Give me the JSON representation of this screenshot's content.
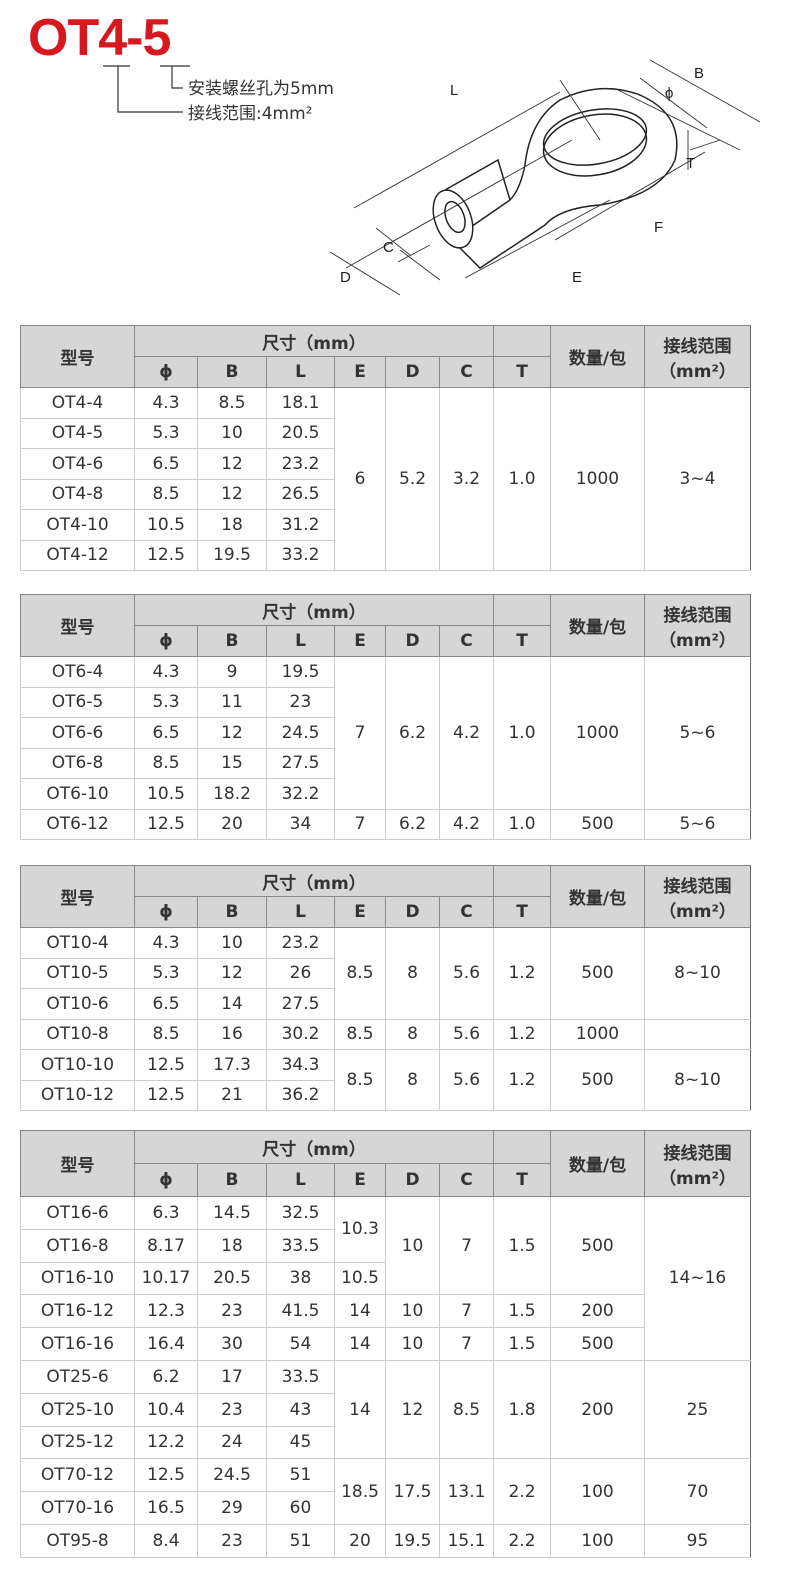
{
  "header": {
    "model_code": "OT4-5",
    "screw_hole_note": "安装螺丝孔为5mm",
    "wire_range_note": "接线范围:4mm²",
    "title_color": "#d7191f"
  },
  "diagram_labels": {
    "L": "L",
    "B": "B",
    "phi": "ϕ",
    "T": "T",
    "F": "F",
    "E": "E",
    "D": "D",
    "C": "C"
  },
  "table_header": {
    "model": "型号",
    "size": "尺寸（mm）",
    "cols": [
      "ϕ",
      "B",
      "L",
      "E",
      "D",
      "C",
      "T"
    ],
    "qty": "数量/包",
    "range_line1": "接线范围",
    "range_line2": "（mm²）"
  },
  "tables": [
    {
      "rows": [
        {
          "c": [
            [
              "OT4-4"
            ],
            [
              "4.3"
            ],
            [
              "8.5"
            ],
            [
              "18.1"
            ],
            [
              "6",
              6
            ],
            [
              "5.2",
              6
            ],
            [
              "3.2",
              6
            ],
            [
              "1.0",
              6
            ],
            [
              "1000",
              6
            ],
            [
              "3~4",
              6
            ]
          ]
        },
        {
          "c": [
            [
              "OT4-5"
            ],
            [
              "5.3"
            ],
            [
              "10"
            ],
            [
              "20.5"
            ]
          ]
        },
        {
          "c": [
            [
              "OT4-6"
            ],
            [
              "6.5"
            ],
            [
              "12"
            ],
            [
              "23.2"
            ]
          ]
        },
        {
          "c": [
            [
              "OT4-8"
            ],
            [
              "8.5"
            ],
            [
              "12"
            ],
            [
              "26.5"
            ]
          ]
        },
        {
          "c": [
            [
              "OT4-10"
            ],
            [
              "10.5"
            ],
            [
              "18"
            ],
            [
              "31.2"
            ]
          ]
        },
        {
          "c": [
            [
              "OT4-12"
            ],
            [
              "12.5"
            ],
            [
              "19.5"
            ],
            [
              "33.2"
            ]
          ]
        }
      ]
    },
    {
      "rows": [
        {
          "c": [
            [
              "OT6-4"
            ],
            [
              "4.3"
            ],
            [
              "9"
            ],
            [
              "19.5"
            ],
            [
              "7",
              5
            ],
            [
              "6.2",
              5
            ],
            [
              "4.2",
              5
            ],
            [
              "1.0",
              5
            ],
            [
              "1000",
              5
            ],
            [
              "5~6",
              5
            ]
          ]
        },
        {
          "c": [
            [
              "OT6-5"
            ],
            [
              "5.3"
            ],
            [
              "11"
            ],
            [
              "23"
            ]
          ]
        },
        {
          "c": [
            [
              "OT6-6"
            ],
            [
              "6.5"
            ],
            [
              "12"
            ],
            [
              "24.5"
            ]
          ]
        },
        {
          "c": [
            [
              "OT6-8"
            ],
            [
              "8.5"
            ],
            [
              "15"
            ],
            [
              "27.5"
            ]
          ]
        },
        {
          "c": [
            [
              "OT6-10"
            ],
            [
              "10.5"
            ],
            [
              "18.2"
            ],
            [
              "32.2"
            ]
          ]
        },
        {
          "g": true,
          "c": [
            [
              "OT6-12"
            ],
            [
              "12.5"
            ],
            [
              "20"
            ],
            [
              "34"
            ],
            [
              "7"
            ],
            [
              "6.2"
            ],
            [
              "4.2"
            ],
            [
              "1.0"
            ],
            [
              "500"
            ],
            [
              "5~6"
            ]
          ]
        }
      ]
    },
    {
      "rows": [
        {
          "c": [
            [
              "OT10-4"
            ],
            [
              "4.3"
            ],
            [
              "10"
            ],
            [
              "23.2"
            ],
            [
              "8.5",
              3
            ],
            [
              "8",
              3
            ],
            [
              "5.6",
              3
            ],
            [
              "1.2",
              3
            ],
            [
              "500",
              3
            ],
            [
              "8~10",
              3
            ]
          ]
        },
        {
          "c": [
            [
              "OT10-5"
            ],
            [
              "5.3"
            ],
            [
              "12"
            ],
            [
              "26"
            ]
          ]
        },
        {
          "c": [
            [
              "OT10-6"
            ],
            [
              "6.5"
            ],
            [
              "14"
            ],
            [
              "27.5"
            ]
          ]
        },
        {
          "g": true,
          "c": [
            [
              "OT10-8"
            ],
            [
              "8.5"
            ],
            [
              "16"
            ],
            [
              "30.2"
            ],
            [
              "8.5"
            ],
            [
              "8"
            ],
            [
              "5.6"
            ],
            [
              "1.2"
            ],
            [
              "1000"
            ],
            [
              ""
            ]
          ]
        },
        {
          "g": true,
          "c": [
            [
              "OT10-10"
            ],
            [
              "12.5"
            ],
            [
              "17.3"
            ],
            [
              "34.3"
            ],
            [
              "8.5",
              2
            ],
            [
              "8",
              2
            ],
            [
              "5.6",
              2
            ],
            [
              "1.2",
              2
            ],
            [
              "500",
              2
            ],
            [
              "8~10",
              2
            ]
          ]
        },
        {
          "c": [
            [
              "OT10-12"
            ],
            [
              "12.5"
            ],
            [
              "21"
            ],
            [
              "36.2"
            ]
          ]
        }
      ]
    },
    {
      "rows": [
        {
          "c": [
            [
              "OT16-6"
            ],
            [
              "6.3"
            ],
            [
              "14.5"
            ],
            [
              "32.5"
            ],
            [
              "10.3",
              2
            ],
            [
              "10",
              3
            ],
            [
              "7",
              3
            ],
            [
              "1.5",
              3
            ],
            [
              "500",
              3
            ],
            [
              "14~16",
              5
            ]
          ]
        },
        {
          "c": [
            [
              "OT16-8"
            ],
            [
              "8.17"
            ],
            [
              "18"
            ],
            [
              "33.5"
            ]
          ]
        },
        {
          "c": [
            [
              "OT16-10"
            ],
            [
              "10.17"
            ],
            [
              "20.5"
            ],
            [
              "38"
            ],
            [
              "10.5"
            ]
          ]
        },
        {
          "c": [
            [
              "OT16-12"
            ],
            [
              "12.3"
            ],
            [
              "23"
            ],
            [
              "41.5"
            ],
            [
              "14"
            ],
            [
              "10"
            ],
            [
              "7"
            ],
            [
              "1.5"
            ],
            [
              "200"
            ]
          ]
        },
        {
          "c": [
            [
              "OT16-16"
            ],
            [
              "16.4"
            ],
            [
              "30"
            ],
            [
              "54"
            ],
            [
              "14"
            ],
            [
              "10"
            ],
            [
              "7"
            ],
            [
              "1.5"
            ],
            [
              "500"
            ]
          ]
        },
        {
          "g": true,
          "c": [
            [
              "OT25-6"
            ],
            [
              "6.2"
            ],
            [
              "17"
            ],
            [
              "33.5"
            ],
            [
              "14",
              3
            ],
            [
              "12",
              3
            ],
            [
              "8.5",
              3
            ],
            [
              "1.8",
              3
            ],
            [
              "200",
              3
            ],
            [
              "25",
              3
            ]
          ]
        },
        {
          "c": [
            [
              "OT25-10"
            ],
            [
              "10.4"
            ],
            [
              "23"
            ],
            [
              "43"
            ]
          ]
        },
        {
          "c": [
            [
              "OT25-12"
            ],
            [
              "12.2"
            ],
            [
              "24"
            ],
            [
              "45"
            ]
          ]
        },
        {
          "g": true,
          "c": [
            [
              "OT70-12"
            ],
            [
              "12.5"
            ],
            [
              "24.5"
            ],
            [
              "51"
            ],
            [
              "18.5",
              2
            ],
            [
              "17.5",
              2
            ],
            [
              "13.1",
              2
            ],
            [
              "2.2",
              2
            ],
            [
              "100",
              2
            ],
            [
              "70",
              2
            ]
          ]
        },
        {
          "c": [
            [
              "OT70-16"
            ],
            [
              "16.5"
            ],
            [
              "29"
            ],
            [
              "60"
            ]
          ]
        },
        {
          "g": true,
          "c": [
            [
              "OT95-8"
            ],
            [
              "8.4"
            ],
            [
              "23"
            ],
            [
              "51"
            ],
            [
              "20"
            ],
            [
              "19.5"
            ],
            [
              "15.1"
            ],
            [
              "2.2"
            ],
            [
              "100"
            ],
            [
              "95"
            ]
          ]
        }
      ]
    }
  ]
}
